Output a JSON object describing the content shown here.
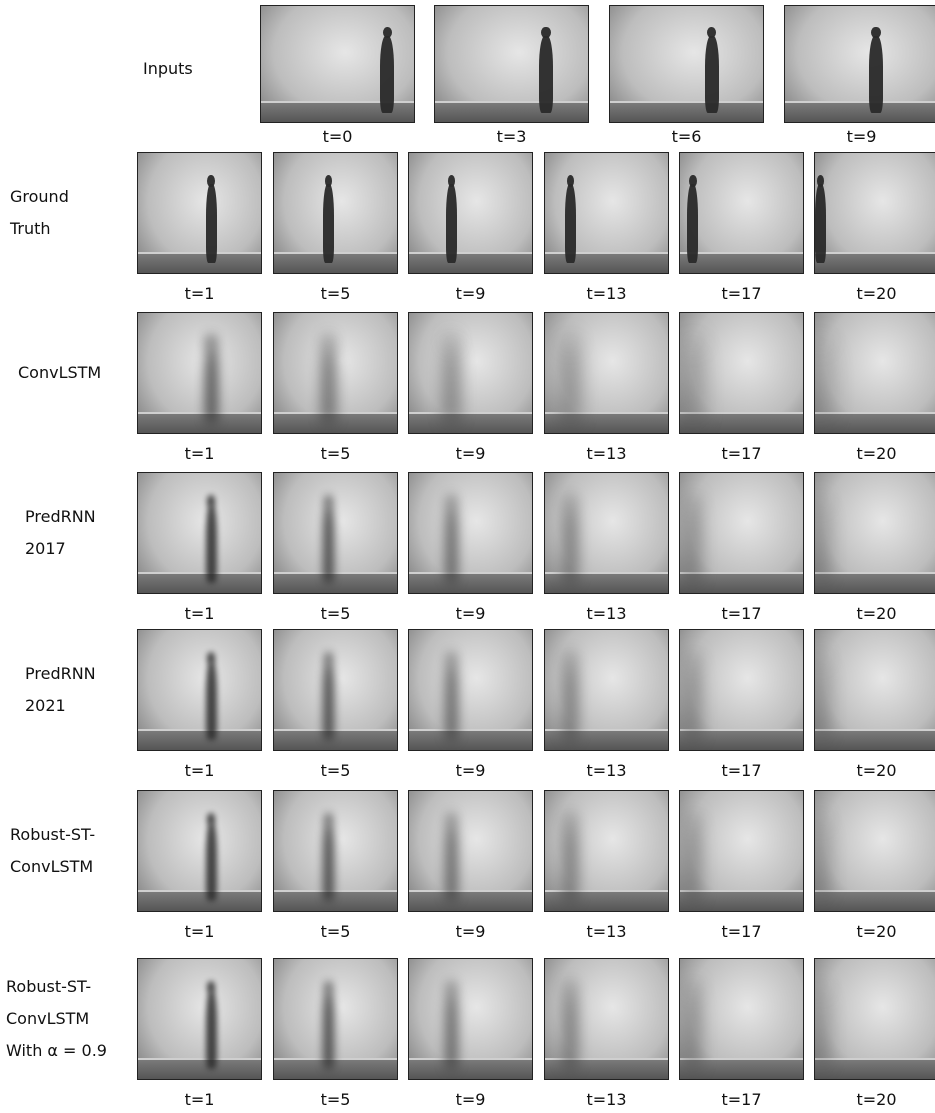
{
  "rows": [
    {
      "label": [
        "Inputs"
      ],
      "frames": [
        "t=0",
        "t=3",
        "t=6",
        "t=9"
      ]
    },
    {
      "label": [
        "Ground",
        "Truth"
      ],
      "frames": [
        "t=1",
        "t=5",
        "t=9",
        "t=13",
        "t=17",
        "t=20"
      ]
    },
    {
      "label": [
        "ConvLSTM"
      ],
      "frames": [
        "t=1",
        "t=5",
        "t=9",
        "t=13",
        "t=17",
        "t=20"
      ]
    },
    {
      "label": [
        "PredRNN",
        "2017"
      ],
      "frames": [
        "t=1",
        "t=5",
        "t=9",
        "t=13",
        "t=17",
        "t=20"
      ]
    },
    {
      "label": [
        "PredRNN",
        "2021"
      ],
      "frames": [
        "t=1",
        "t=5",
        "t=9",
        "t=13",
        "t=17",
        "t=20"
      ]
    },
    {
      "label": [
        "Robust-ST-",
        "ConvLSTM"
      ],
      "frames": [
        "t=1",
        "t=5",
        "t=9",
        "t=13",
        "t=17",
        "t=20"
      ]
    },
    {
      "label": [
        "Robust-ST-",
        "ConvLSTM",
        "With α = 0.9"
      ],
      "frames": [
        "t=1",
        "t=5",
        "t=9",
        "t=13",
        "t=17",
        "t=20"
      ]
    }
  ]
}
